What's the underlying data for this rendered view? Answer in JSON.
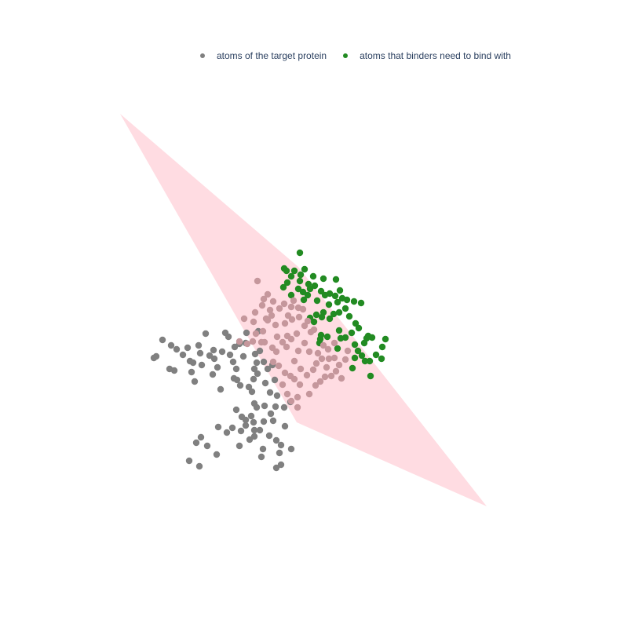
{
  "chart_data": {
    "type": "scatter",
    "legend_position": "top",
    "grid": false,
    "plane": {
      "color": "#ffc0cb",
      "opacity": 0.55,
      "corners": [
        [
          153,
          145
        ],
        [
          380,
          340
        ],
        [
          620,
          645
        ],
        [
          378,
          538
        ]
      ]
    },
    "series": [
      {
        "name": "atoms of the target protein",
        "color": "#808080",
        "points": [
          [
            196,
            456
          ],
          [
            199,
            454
          ],
          [
            207,
            433
          ],
          [
            216,
            470
          ],
          [
            218,
            440
          ],
          [
            222,
            472
          ],
          [
            225,
            445
          ],
          [
            233,
            452
          ],
          [
            239,
            443
          ],
          [
            242,
            460
          ],
          [
            244,
            474
          ],
          [
            246,
            462
          ],
          [
            248,
            486
          ],
          [
            253,
            440
          ],
          [
            255,
            450
          ],
          [
            257,
            465
          ],
          [
            262,
            425
          ],
          [
            267,
            453
          ],
          [
            272,
            446
          ],
          [
            273,
            457
          ],
          [
            271,
            477
          ],
          [
            277,
            468
          ],
          [
            281,
            496
          ],
          [
            283,
            448
          ],
          [
            287,
            424
          ],
          [
            291,
            429
          ],
          [
            293,
            452
          ],
          [
            299,
            442
          ],
          [
            301,
            470
          ],
          [
            297,
            461
          ],
          [
            298,
            482
          ],
          [
            302,
            484
          ],
          [
            306,
            491
          ],
          [
            305,
            438
          ],
          [
            310,
            454
          ],
          [
            314,
            424
          ],
          [
            313,
            437
          ],
          [
            317,
            493
          ],
          [
            321,
            499
          ],
          [
            323,
            483
          ],
          [
            324,
            470
          ],
          [
            325,
            451
          ],
          [
            328,
            476
          ],
          [
            327,
            462
          ],
          [
            329,
            422
          ],
          [
            331,
            447
          ],
          [
            336,
            461
          ],
          [
            338,
            488
          ],
          [
            341,
            470
          ],
          [
            344,
            500
          ],
          [
            347,
            465
          ],
          [
            350,
            484
          ],
          [
            353,
            504
          ],
          [
            327,
            519
          ],
          [
            324,
            514
          ],
          [
            337,
            517
          ],
          [
            345,
            527
          ],
          [
            351,
            518
          ],
          [
            362,
            519
          ],
          [
            370,
            512
          ],
          [
            301,
            522
          ],
          [
            308,
            531
          ],
          [
            313,
            535
          ],
          [
            296,
            545
          ],
          [
            289,
            551
          ],
          [
            278,
            544
          ],
          [
            313,
            542
          ],
          [
            320,
            530
          ],
          [
            323,
            538
          ],
          [
            324,
            548
          ],
          [
            331,
            548
          ],
          [
            336,
            537
          ],
          [
            343,
            555
          ],
          [
            348,
            536
          ],
          [
            352,
            561
          ],
          [
            358,
            567
          ],
          [
            363,
            543
          ],
          [
            371,
            572
          ],
          [
            356,
            577
          ],
          [
            335,
            572
          ],
          [
            333,
            582
          ],
          [
            352,
            596
          ],
          [
            358,
            592
          ],
          [
            307,
            549
          ],
          [
            305,
            568
          ],
          [
            318,
            560
          ],
          [
            324,
            556
          ],
          [
            264,
            568
          ],
          [
            256,
            557
          ],
          [
            250,
            564
          ],
          [
            241,
            587
          ],
          [
            254,
            594
          ],
          [
            276,
            579
          ]
        ]
      },
      {
        "name": "atoms that binders need to bind with",
        "color": "#228b22",
        "points": [
          [
            382,
            322
          ],
          [
            362,
            342
          ],
          [
            365,
            345
          ],
          [
            375,
            345
          ],
          [
            383,
            350
          ],
          [
            388,
            343
          ],
          [
            371,
            352
          ],
          [
            382,
            358
          ],
          [
            393,
            362
          ],
          [
            399,
            352
          ],
          [
            412,
            355
          ],
          [
            428,
            356
          ],
          [
            361,
            366
          ],
          [
            366,
            360
          ],
          [
            371,
            376
          ],
          [
            380,
            368
          ],
          [
            386,
            372
          ],
          [
            387,
            382
          ],
          [
            392,
            376
          ],
          [
            395,
            368
          ],
          [
            401,
            364
          ],
          [
            404,
            383
          ],
          [
            409,
            371
          ],
          [
            414,
            376
          ],
          [
            419,
            388
          ],
          [
            412,
            398
          ],
          [
            403,
            401
          ],
          [
            410,
            404
          ],
          [
            395,
            405
          ],
          [
            400,
            410
          ],
          [
            420,
            406
          ],
          [
            425,
            400
          ],
          [
            432,
            398
          ],
          [
            430,
            385
          ],
          [
            427,
            377
          ],
          [
            433,
            370
          ],
          [
            436,
            380
          ],
          [
            440,
            393
          ],
          [
            445,
            403
          ],
          [
            442,
            382
          ],
          [
            451,
            384
          ],
          [
            460,
            386
          ],
          [
            453,
            412
          ],
          [
            457,
            418
          ],
          [
            448,
            424
          ],
          [
            440,
            430
          ],
          [
            432,
            421
          ],
          [
            434,
            431
          ],
          [
            430,
            444
          ],
          [
            452,
            439
          ],
          [
            456,
            447
          ],
          [
            461,
            453
          ],
          [
            464,
            437
          ],
          [
            467,
            431
          ],
          [
            469,
            428
          ],
          [
            474,
            430
          ],
          [
            487,
            442
          ],
          [
            491,
            432
          ],
          [
            486,
            457
          ],
          [
            479,
            452
          ],
          [
            471,
            460
          ],
          [
            465,
            460
          ],
          [
            449,
            469
          ],
          [
            472,
            479
          ],
          [
            417,
            429
          ],
          [
            409,
            427
          ],
          [
            408,
            432
          ],
          [
            407,
            437
          ],
          [
            452,
            456
          ],
          [
            420,
            374
          ]
        ]
      },
      {
        "name": "",
        "color": "#c5979c",
        "points": [
          [
            328,
            358
          ],
          [
            336,
            381
          ],
          [
            341,
            375
          ],
          [
            344,
            395
          ],
          [
            348,
            384
          ],
          [
            339,
            406
          ],
          [
            341,
            408
          ],
          [
            346,
            402
          ],
          [
            334,
            389
          ],
          [
            325,
            398
          ],
          [
            323,
            410
          ],
          [
            311,
            406
          ],
          [
            305,
            435
          ],
          [
            315,
            438
          ],
          [
            326,
            425
          ],
          [
            335,
            422
          ],
          [
            337,
            436
          ],
          [
            351,
            414
          ],
          [
            356,
            393
          ],
          [
            362,
            387
          ],
          [
            363,
            412
          ],
          [
            367,
            402
          ],
          [
            371,
            391
          ],
          [
            372,
            407
          ],
          [
            374,
            383
          ],
          [
            380,
            392
          ],
          [
            381,
            404
          ],
          [
            386,
            394
          ],
          [
            388,
            415
          ],
          [
            392,
            409
          ],
          [
            396,
            423
          ],
          [
            400,
            420
          ],
          [
            378,
            425
          ],
          [
            371,
            432
          ],
          [
            366,
            428
          ],
          [
            365,
            442
          ],
          [
            360,
            436
          ],
          [
            352,
            448
          ],
          [
            348,
            461
          ],
          [
            355,
            466
          ],
          [
            363,
            475
          ],
          [
            370,
            479
          ],
          [
            375,
            483
          ],
          [
            383,
            470
          ],
          [
            391,
            478
          ],
          [
            399,
            471
          ],
          [
            403,
            463
          ],
          [
            410,
            457
          ],
          [
            416,
            468
          ],
          [
            422,
            479
          ],
          [
            428,
            473
          ],
          [
            432,
            465
          ],
          [
            435,
            482
          ],
          [
            440,
            458
          ],
          [
            443,
            447
          ],
          [
            426,
            437
          ],
          [
            418,
            445
          ],
          [
            412,
            440
          ],
          [
            405,
            450
          ],
          [
            394,
            448
          ],
          [
            388,
            437
          ],
          [
            380,
            447
          ],
          [
            375,
            460
          ],
          [
            360,
            490
          ],
          [
            366,
            502
          ],
          [
            371,
            511
          ],
          [
            379,
            506
          ],
          [
            382,
            490
          ],
          [
            394,
            502
          ],
          [
            402,
            491
          ],
          [
            408,
            486
          ],
          [
            414,
            480
          ],
          [
            419,
            457
          ],
          [
            426,
            456
          ],
          [
            353,
            429
          ],
          [
            347,
            443
          ],
          [
            322,
            435
          ],
          [
            333,
            436
          ],
          [
            379,
            519
          ]
        ]
      }
    ]
  },
  "legend": [
    {
      "label": "atoms of the target protein",
      "color": "#808080"
    },
    {
      "label": "atoms that binders need to bind with",
      "color": "#228b22"
    }
  ]
}
